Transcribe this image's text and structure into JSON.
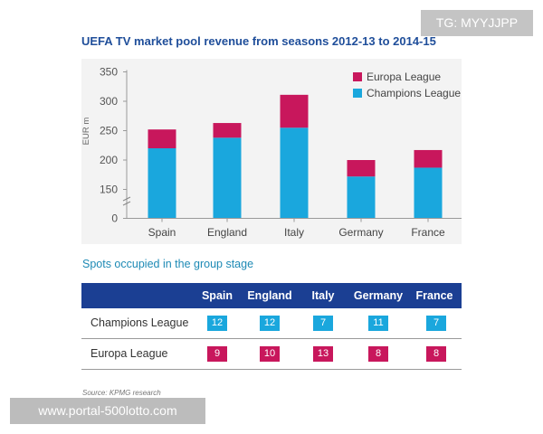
{
  "chart_data": {
    "type": "bar",
    "stacked": true,
    "title": "UEFA TV market pool revenue from seasons 2012-13 to 2014-15",
    "ylabel": "EUR m",
    "xlabel": "",
    "categories": [
      "Spain",
      "England",
      "Italy",
      "Germany",
      "France"
    ],
    "series": [
      {
        "name": "Champions League",
        "color": "#1aa7dd",
        "values": [
          220,
          238,
          255,
          172,
          187
        ]
      },
      {
        "name": "Europa League",
        "color": "#c8175c",
        "values": [
          32,
          25,
          56,
          28,
          30
        ]
      }
    ],
    "yticks": [
      0,
      150,
      200,
      250,
      300,
      350
    ],
    "ylim": [
      100,
      350
    ],
    "axis_break": true,
    "legend_position": "top-right",
    "legend_order": [
      "Europa League",
      "Champions League"
    ]
  },
  "table": {
    "title": "Spots occupied in the group stage",
    "columns": [
      "Spain",
      "England",
      "Italy",
      "Germany",
      "France"
    ],
    "rows": [
      {
        "label": "Champions League",
        "values": [
          "12",
          "12",
          "7",
          "11",
          "7"
        ]
      },
      {
        "label": "Europa League",
        "values": [
          "9",
          "10",
          "13",
          "8",
          "8"
        ]
      }
    ]
  },
  "source": "Source: KPMG research",
  "watermarks": {
    "tg": "TG: MYYJJPP",
    "url": "www.portal-500lotto.com"
  }
}
